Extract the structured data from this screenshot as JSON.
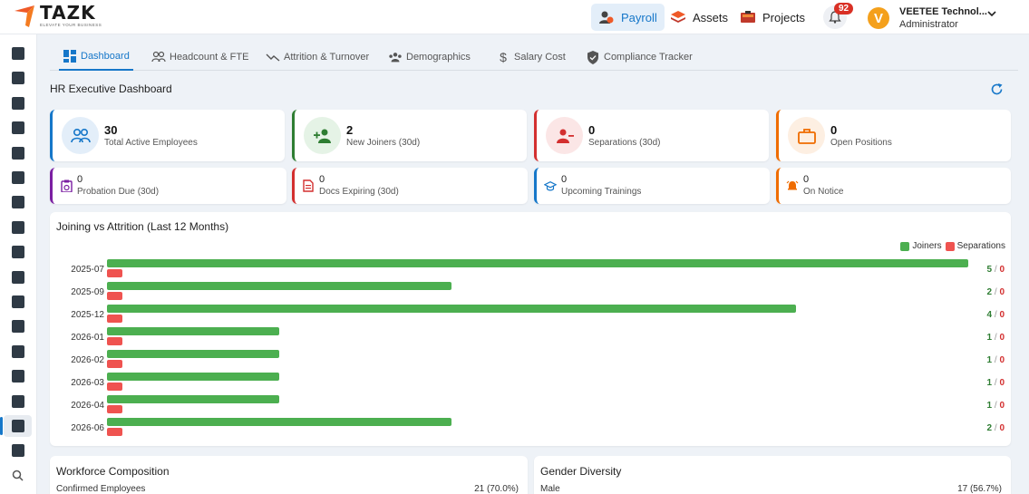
{
  "brand": {
    "name": "TAZK",
    "tagline": "ELEVATE YOUR BUSINESS"
  },
  "topnav": [
    {
      "label": "Payroll",
      "icon": "payroll-icon",
      "active": true
    },
    {
      "label": "Assets",
      "icon": "assets-icon",
      "active": false
    },
    {
      "label": "Projects",
      "icon": "projects-icon",
      "active": false
    }
  ],
  "notifications": {
    "count": "92"
  },
  "user": {
    "initial": "V",
    "name": "VEETEE Technol...",
    "role": "Administrator"
  },
  "tabs": [
    {
      "label": "Dashboard",
      "icon": "dashboard-icon",
      "active": true
    },
    {
      "label": "Headcount & FTE",
      "icon": "people-icon",
      "active": false
    },
    {
      "label": "Attrition & Turnover",
      "icon": "trend-icon",
      "active": false
    },
    {
      "label": "Demographics",
      "icon": "group-icon",
      "active": false
    },
    {
      "label": "Salary Cost",
      "icon": "dollar-icon",
      "active": false
    },
    {
      "label": "Compliance Tracker",
      "icon": "shield-icon",
      "active": false
    }
  ],
  "page": {
    "title": "HR Executive Dashboard"
  },
  "kpis": [
    {
      "value": "30",
      "label": "Total Active Employees",
      "color": "#1677c9",
      "bg": "#e3eef9",
      "icon": "users-icon"
    },
    {
      "value": "2",
      "label": "New Joiners (30d)",
      "color": "#2e7d32",
      "bg": "#e5f3e6",
      "icon": "user-add-icon"
    },
    {
      "value": "0",
      "label": "Separations (30d)",
      "color": "#d32f2f",
      "bg": "#fbe6e6",
      "icon": "user-remove-icon"
    },
    {
      "value": "0",
      "label": "Open Positions",
      "color": "#ef6c00",
      "bg": "#fdefe2",
      "icon": "briefcase-icon"
    }
  ],
  "minis": [
    {
      "value": "0",
      "label": "Probation Due (30d)",
      "color": "#7b1fa2",
      "icon": "clipboard-icon"
    },
    {
      "value": "0",
      "label": "Docs Expiring (30d)",
      "color": "#d32f2f",
      "icon": "document-icon"
    },
    {
      "value": "0",
      "label": "Upcoming Trainings",
      "color": "#1677c9",
      "icon": "graduation-icon"
    },
    {
      "value": "0",
      "label": "On Notice",
      "color": "#ef6c00",
      "icon": "alarm-icon"
    }
  ],
  "chart_data": {
    "type": "bar",
    "orientation": "horizontal",
    "title": "Joining vs Attrition (Last 12 Months)",
    "categories": [
      "2025-07",
      "2025-09",
      "2025-12",
      "2026-01",
      "2026-02",
      "2026-03",
      "2026-04",
      "2026-06"
    ],
    "series": [
      {
        "name": "Joiners",
        "color": "#4caf50",
        "values": [
          5,
          2,
          4,
          1,
          1,
          1,
          1,
          2
        ]
      },
      {
        "name": "Separations",
        "color": "#ef5350",
        "values": [
          0,
          0,
          0,
          0,
          0,
          0,
          0,
          0
        ]
      }
    ],
    "value_labels": [
      "5 / 0",
      "2 / 0",
      "4 / 0",
      "1 / 0",
      "1 / 0",
      "1 / 0",
      "1 / 0",
      "2 / 0"
    ],
    "xlim": [
      0,
      5
    ],
    "legend": "top-right",
    "grid": false
  },
  "bottom": [
    {
      "title": "Workforce Composition",
      "row_label": "Confirmed Employees",
      "row_value": "21 (70.0%)"
    },
    {
      "title": "Gender Diversity",
      "row_label": "Male",
      "row_value": "17 (56.7%)"
    }
  ],
  "sidebar": {
    "count": 18,
    "active_index": 15
  }
}
